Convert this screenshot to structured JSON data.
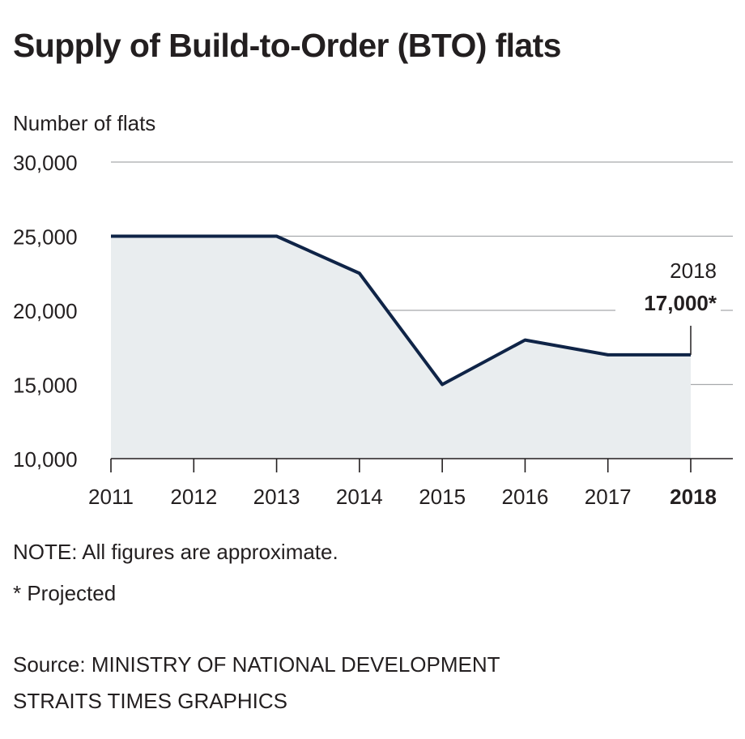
{
  "chart_data": {
    "type": "area",
    "title": "Supply of Build-to-Order (BTO) flats",
    "ylabel": "Number of flats",
    "xlabel": "",
    "categories": [
      "2011",
      "2012",
      "2013",
      "2014",
      "2015",
      "2016",
      "2017",
      "2018"
    ],
    "series": [
      {
        "values": [
          25000,
          25000,
          25000,
          22500,
          15000,
          18000,
          17000,
          17000
        ]
      }
    ],
    "ylim": [
      10000,
      30000
    ],
    "yticks": [
      10000,
      15000,
      20000,
      25000,
      30000
    ],
    "ytick_labels": [
      "10,000",
      "15,000",
      "20,000",
      "25,000",
      "30,000"
    ],
    "highlight_category": "2018",
    "grid": true,
    "annotation": {
      "label": "2018",
      "value": "17,000*"
    },
    "line_color": "#0f2447",
    "fill_color": "#e9edef",
    "grid_color": "#a7a9ac"
  },
  "notes": {
    "approx": "NOTE: All figures are approximate.",
    "projected": "* Projected",
    "source": "Source: MINISTRY OF NATIONAL DEVELOPMENT",
    "credit": "STRAITS TIMES GRAPHICS"
  }
}
